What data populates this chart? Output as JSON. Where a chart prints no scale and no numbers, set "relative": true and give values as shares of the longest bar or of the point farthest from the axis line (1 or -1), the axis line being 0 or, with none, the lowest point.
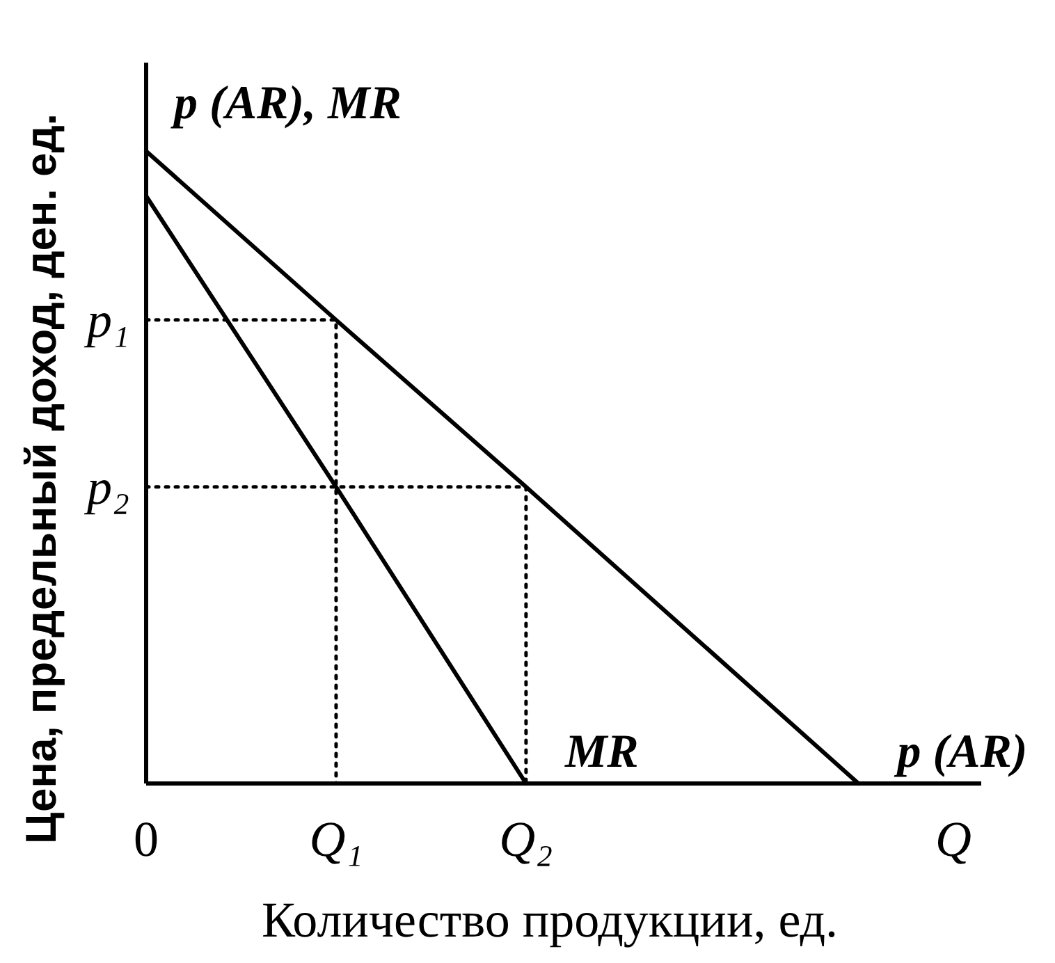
{
  "chart_data": {
    "type": "line",
    "relative": true,
    "xlabel": "Количество продукции, ед.",
    "ylabel": "Цена, предельный доход, ден. ед.",
    "categories": [
      "0",
      null,
      null,
      null,
      "Q₁",
      null,
      null,
      null,
      "Q₂",
      null,
      null,
      null,
      null,
      null,
      null,
      null,
      null,
      "Q"
    ],
    "series": [
      {
        "name": "p (AR)",
        "color": "#000000",
        "line_style": "solid",
        "values": [
          1,
          null,
          null,
          null,
          0.733,
          null,
          null,
          null,
          0.469,
          null,
          null,
          null,
          null,
          null,
          null,
          0,
          null,
          null
        ]
      },
      {
        "name": "MR",
        "color": "#000000",
        "line_style": "solid",
        "values": [
          0.929,
          null,
          null,
          null,
          0.469,
          null,
          null,
          null,
          0,
          null,
          null,
          null,
          null,
          null,
          null,
          null,
          null,
          null
        ]
      },
      {
        "name": "p₁",
        "color": "#000000",
        "line_style": "dotted",
        "x": [
          "0",
          "Q₁",
          "Q₁"
        ],
        "values": [
          0.733,
          0.733,
          0
        ]
      },
      {
        "name": "p₂",
        "color": "#000000",
        "line_style": "dotted",
        "x": [
          "0",
          "Q₂",
          "Q₂"
        ],
        "values": [
          0.469,
          0.469,
          0
        ]
      }
    ],
    "annotations": [
      "p (AR), MR"
    ]
  }
}
